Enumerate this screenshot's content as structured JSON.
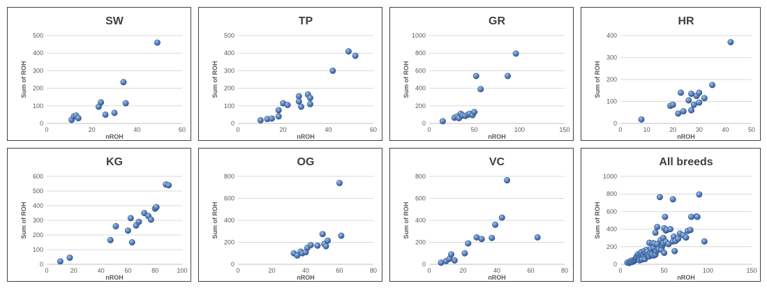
{
  "colors": {
    "point": "#2f5597",
    "point_highlight": "#9dc3e6",
    "grid": "#d9d9d9"
  },
  "chart_data": [
    {
      "type": "scatter",
      "title": "SW",
      "xlabel": "nROH",
      "ylabel": "Sum of ROH",
      "xlim": [
        0,
        60
      ],
      "ylim": [
        0,
        500
      ],
      "xticks": [
        0,
        20,
        40,
        60
      ],
      "yticks": [
        0,
        100,
        200,
        300,
        400,
        500
      ],
      "x": [
        11,
        12,
        13,
        14,
        23,
        24,
        26,
        30,
        34,
        35,
        49
      ],
      "y": [
        20,
        40,
        45,
        30,
        95,
        120,
        50,
        60,
        235,
        115,
        460
      ]
    },
    {
      "type": "scatter",
      "title": "TP",
      "xlabel": "nROH",
      "ylabel": "Sum of ROH",
      "xlim": [
        0,
        60
      ],
      "ylim": [
        0,
        500
      ],
      "xticks": [
        0,
        20,
        40,
        60
      ],
      "yticks": [
        0,
        100,
        200,
        300,
        400,
        500
      ],
      "x": [
        10,
        13,
        15,
        18,
        18,
        20,
        22,
        27,
        27,
        28,
        31,
        32,
        32,
        42,
        49,
        52
      ],
      "y": [
        18,
        25,
        28,
        40,
        75,
        115,
        105,
        155,
        125,
        95,
        165,
        145,
        110,
        300,
        410,
        385
      ]
    },
    {
      "type": "scatter",
      "title": "GR",
      "xlabel": "nROH",
      "ylabel": "Sum of ROH",
      "xlim": [
        0,
        150
      ],
      "ylim": [
        0,
        1000
      ],
      "xticks": [
        0,
        50,
        100,
        150
      ],
      "yticks": [
        0,
        200,
        400,
        600,
        800,
        1000
      ],
      "x": [
        15,
        28,
        31,
        33,
        35,
        37,
        40,
        43,
        45,
        48,
        50,
        52,
        57,
        87,
        96
      ],
      "y": [
        25,
        65,
        80,
        60,
        110,
        90,
        85,
        100,
        110,
        95,
        130,
        540,
        390,
        540,
        795
      ]
    },
    {
      "type": "scatter",
      "title": "HR",
      "xlabel": "nROH",
      "ylabel": "Sum of ROH",
      "xlim": [
        0,
        50
      ],
      "ylim": [
        0,
        400
      ],
      "xticks": [
        0,
        10,
        20,
        30,
        40,
        50
      ],
      "yticks": [
        0,
        100,
        200,
        300,
        400
      ],
      "x": [
        8,
        19,
        20,
        22,
        23,
        24,
        26,
        27,
        27,
        28,
        29,
        30,
        30,
        32,
        35,
        42
      ],
      "y": [
        18,
        80,
        85,
        45,
        140,
        55,
        105,
        60,
        135,
        85,
        125,
        95,
        140,
        115,
        175,
        370
      ]
    },
    {
      "type": "scatter",
      "title": "KG",
      "xlabel": "nROH",
      "ylabel": "Sum of ROH",
      "xlim": [
        0,
        100
      ],
      "ylim": [
        0,
        600
      ],
      "xticks": [
        0,
        20,
        40,
        60,
        80,
        100
      ],
      "yticks": [
        0,
        100,
        200,
        300,
        400,
        500,
        600
      ],
      "x": [
        10,
        17,
        47,
        51,
        60,
        62,
        63,
        66,
        68,
        72,
        75,
        77,
        80,
        81,
        88,
        90
      ],
      "y": [
        20,
        45,
        165,
        260,
        230,
        315,
        150,
        265,
        290,
        350,
        330,
        305,
        380,
        390,
        545,
        540
      ]
    },
    {
      "type": "scatter",
      "title": "OG",
      "xlabel": "nROH",
      "ylabel": "Sum of ROH",
      "xlim": [
        0,
        80
      ],
      "ylim": [
        0,
        800
      ],
      "xticks": [
        0,
        20,
        40,
        60,
        80
      ],
      "yticks": [
        0,
        200,
        400,
        600,
        800
      ],
      "x": [
        33,
        35,
        37,
        38,
        40,
        41,
        43,
        47,
        50,
        51,
        52,
        53,
        60,
        61
      ],
      "y": [
        100,
        80,
        115,
        100,
        110,
        150,
        175,
        170,
        275,
        185,
        165,
        215,
        740,
        260
      ]
    },
    {
      "type": "scatter",
      "title": "VC",
      "xlabel": "nROH",
      "ylabel": "Sum of ROH",
      "xlim": [
        0,
        80
      ],
      "ylim": [
        0,
        800
      ],
      "xticks": [
        0,
        20,
        40,
        60,
        80
      ],
      "yticks": [
        0,
        200,
        400,
        600,
        800
      ],
      "x": [
        7,
        10,
        12,
        13,
        15,
        21,
        23,
        28,
        31,
        37,
        39,
        43,
        46,
        64
      ],
      "y": [
        15,
        30,
        50,
        90,
        35,
        100,
        190,
        245,
        230,
        240,
        360,
        425,
        765,
        245
      ]
    },
    {
      "type": "scatter",
      "title": "All breeds",
      "xlabel": "nROH",
      "ylabel": "Sum of ROH",
      "xlim": [
        0,
        150
      ],
      "ylim": [
        0,
        1000
      ],
      "xticks": [
        0,
        50,
        100,
        150
      ],
      "yticks": [
        0,
        200,
        400,
        600,
        800,
        1000
      ],
      "x": [
        8,
        10,
        11,
        12,
        13,
        14,
        15,
        16,
        17,
        18,
        18,
        19,
        20,
        20,
        21,
        22,
        22,
        23,
        24,
        24,
        25,
        26,
        27,
        27,
        28,
        28,
        29,
        30,
        30,
        31,
        31,
        32,
        33,
        33,
        34,
        35,
        35,
        36,
        37,
        38,
        38,
        39,
        40,
        40,
        41,
        42,
        42,
        43,
        44,
        45,
        46,
        47,
        47,
        48,
        49,
        49,
        50,
        50,
        51,
        52,
        52,
        53,
        55,
        57,
        60,
        60,
        61,
        62,
        63,
        66,
        68,
        72,
        75,
        77,
        80,
        81,
        87,
        88,
        90,
        96
      ],
      "y": [
        20,
        15,
        30,
        40,
        25,
        45,
        35,
        40,
        50,
        60,
        80,
        95,
        75,
        115,
        85,
        45,
        105,
        120,
        140,
        60,
        55,
        105,
        150,
        95,
        60,
        125,
        135,
        100,
        165,
        115,
        145,
        110,
        90,
        245,
        130,
        115,
        175,
        110,
        240,
        100,
        190,
        235,
        360,
        110,
        150,
        230,
        425,
        175,
        170,
        765,
        275,
        185,
        165,
        215,
        240,
        300,
        130,
        410,
        540,
        385,
        255,
        390,
        230,
        400,
        740,
        260,
        315,
        150,
        265,
        290,
        350,
        330,
        305,
        380,
        390,
        540,
        545,
        540,
        795,
        260
      ]
    }
  ]
}
